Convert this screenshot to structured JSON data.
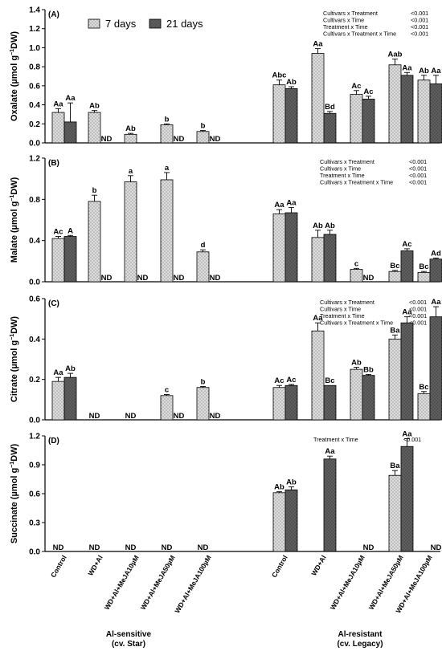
{
  "categories": [
    "Control",
    "WD+Al",
    "WD+Al+MeJA10µM",
    "WD+Al+MeJA50µM",
    "WD+Al+MeJA100µM"
  ],
  "legend": {
    "series_a": "7 days",
    "series_b": "21 days"
  },
  "groups": [
    {
      "line1": "Al-sensitive",
      "line2": "(cv. Star)"
    },
    {
      "line1": "Al-resistant",
      "line2": "(cv. Legacy)"
    }
  ],
  "colors": {
    "light_bar": "#d9d9d9",
    "dark_bar": "#606060"
  },
  "chart_data": [
    {
      "type": "bar",
      "panel": "(A)",
      "ylabel_main": "Oxalate (µmol g",
      "ylabel_sup": "−1",
      "ylabel_end": "DW)",
      "ylim": [
        0,
        1.4
      ],
      "ticks": [
        "0.0",
        "0.2",
        "0.4",
        "0.6",
        "0.8",
        "1.0",
        "1.2",
        "1.4"
      ],
      "stats": [
        {
          "label": "Cultivars x Treatment",
          "value": "<0.001"
        },
        {
          "label": "Cultivars x Time",
          "value": "<0.001"
        },
        {
          "label": "Treatment x Time",
          "value": "<0.001"
        },
        {
          "label": "Cultivars x Treatment x Time",
          "value": "<0.001"
        }
      ],
      "series": [
        {
          "name": "7 days",
          "sensitive": [
            0.32,
            0.32,
            0.09,
            0.19,
            0.12
          ],
          "sensitive_err": [
            0.04,
            0.02,
            0.01,
            0.01,
            0.01
          ],
          "sensitive_labels": [
            "Aa",
            "Ab",
            "Ab",
            "b",
            "b"
          ],
          "resistant": [
            0.61,
            0.94,
            0.51,
            0.82,
            0.66
          ],
          "resistant_err": [
            0.05,
            0.05,
            0.04,
            0.06,
            0.05
          ],
          "resistant_labels": [
            "Abc",
            "Aa",
            "Ac",
            "Aab",
            "Ab"
          ]
        },
        {
          "name": "21 days",
          "sensitive": [
            0.22,
            null,
            null,
            null,
            null
          ],
          "sensitive_err": [
            0.2,
            null,
            null,
            null,
            null
          ],
          "sensitive_labels": [
            "Aa",
            "ND",
            "",
            "ND",
            "ND"
          ],
          "resistant": [
            0.57,
            0.31,
            0.46,
            0.71,
            0.62
          ],
          "resistant_err": [
            0.02,
            0.02,
            0.03,
            0.03,
            0.09
          ],
          "resistant_labels": [
            "Ab",
            "Bd",
            "Ac",
            "Aa",
            "Aa"
          ]
        }
      ]
    },
    {
      "type": "bar",
      "panel": "(B)",
      "ylabel_main": "Malate (µmol g",
      "ylabel_sup": "−1",
      "ylabel_end": "DW)",
      "ylim": [
        0,
        1.2
      ],
      "ticks": [
        "0.0",
        "0.4",
        "0.8",
        "1.2"
      ],
      "stats": [
        {
          "label": "Cultivars x Treatment",
          "value": "<0.001"
        },
        {
          "label": "Cultivars x Time",
          "value": "<0.001"
        },
        {
          "label": "Treatment x Time",
          "value": "<0.001"
        },
        {
          "label": "Cultivars x Treatment x Time",
          "value": "<0.001"
        }
      ],
      "series": [
        {
          "name": "7 days",
          "sensitive": [
            0.42,
            0.78,
            0.97,
            0.99,
            0.29
          ],
          "sensitive_err": [
            0.02,
            0.06,
            0.06,
            0.07,
            0.02
          ],
          "sensitive_labels": [
            "Ac",
            "b",
            "a",
            "a",
            "d"
          ],
          "resistant": [
            0.66,
            0.43,
            0.12,
            0.1,
            0.09
          ],
          "resistant_err": [
            0.04,
            0.07,
            0.01,
            0.01,
            0.01
          ],
          "resistant_labels": [
            "Aa",
            "Ab",
            "c",
            "Bc",
            "Bc"
          ]
        },
        {
          "name": "21 days",
          "sensitive": [
            0.44,
            null,
            null,
            null,
            null
          ],
          "sensitive_err": [
            0.01,
            null,
            null,
            null,
            null
          ],
          "sensitive_labels": [
            "A",
            "ND",
            "ND",
            "ND",
            "ND"
          ],
          "resistant": [
            0.67,
            0.46,
            null,
            0.3,
            0.22
          ],
          "resistant_err": [
            0.05,
            0.04,
            null,
            0.02,
            0.01
          ],
          "resistant_labels": [
            "Aa",
            "Ab",
            "ND",
            "Ac",
            "Ad"
          ]
        }
      ]
    },
    {
      "type": "bar",
      "panel": "(C)",
      "ylabel_main": "Citrate (µmol g",
      "ylabel_sup": "−1",
      "ylabel_end": "DW)",
      "ylim": [
        0,
        0.6
      ],
      "ticks": [
        "0.0",
        "0.2",
        "0.4",
        "0.6"
      ],
      "stats": [
        {
          "label": "Cultivars x Treatment",
          "value": "<0.001"
        },
        {
          "label": "Cultivars x Time",
          "value": "<0.001"
        },
        {
          "label": "Treatment x Time",
          "value": "<0.001"
        },
        {
          "label": "Cultivars x Treatment x Time",
          "value": "<0.001"
        }
      ],
      "series": [
        {
          "name": "7 days",
          "sensitive": [
            0.19,
            null,
            null,
            0.12,
            0.16
          ],
          "sensitive_err": [
            0.02,
            null,
            null,
            0.005,
            0.005
          ],
          "sensitive_labels": [
            "Aa",
            "ND",
            "ND",
            "c",
            "b"
          ],
          "resistant": [
            0.16,
            0.44,
            0.25,
            0.4,
            0.13
          ],
          "resistant_err": [
            0.01,
            0.04,
            0.01,
            0.02,
            0.01
          ],
          "resistant_labels": [
            "Ac",
            "Aa",
            "Ab",
            "Ba",
            "Bc"
          ]
        },
        {
          "name": "21 days",
          "sensitive": [
            0.21,
            null,
            null,
            null,
            null
          ],
          "sensitive_err": [
            0.02,
            null,
            null,
            null,
            null
          ],
          "sensitive_labels": [
            "Ab",
            "",
            "",
            "ND",
            "ND"
          ],
          "resistant": [
            0.17,
            0.17,
            0.22,
            0.48,
            0.51
          ],
          "resistant_err": [
            0.005,
            0.0,
            0.005,
            0.03,
            0.05
          ],
          "resistant_labels": [
            "Ac",
            "Bc",
            "Bb",
            "Aa",
            "Aa"
          ]
        }
      ]
    },
    {
      "type": "bar",
      "panel": "(D)",
      "ylabel_main": "Succinate (µmol g",
      "ylabel_sup": "−1",
      "ylabel_end": "DW)",
      "ylim": [
        0,
        1.2
      ],
      "ticks": [
        "0.0",
        "0.3",
        "0.6",
        "0.9",
        "1.2"
      ],
      "stats": [
        {
          "label": "Treatment x Time",
          "value": "<0.001"
        }
      ],
      "series": [
        {
          "name": "7 days",
          "sensitive": [
            null,
            null,
            null,
            null,
            null
          ],
          "sensitive_err": [
            null,
            null,
            null,
            null,
            null
          ],
          "sensitive_labels": [
            "ND",
            "ND",
            "ND",
            "ND",
            "ND"
          ],
          "resistant": [
            0.61,
            null,
            null,
            0.79,
            null
          ],
          "resistant_err": [
            0.01,
            null,
            null,
            0.05,
            null
          ],
          "resistant_labels": [
            "Ab",
            "",
            "",
            "Ba",
            ""
          ]
        },
        {
          "name": "21 days",
          "sensitive": [
            null,
            null,
            null,
            null,
            null
          ],
          "sensitive_err": [
            null,
            null,
            null,
            null,
            null
          ],
          "sensitive_labels": [
            "",
            "",
            "",
            "",
            ""
          ],
          "resistant": [
            0.64,
            0.96,
            null,
            1.09,
            null
          ],
          "resistant_err": [
            0.03,
            0.03,
            null,
            0.08,
            null
          ],
          "resistant_labels": [
            "Ab",
            "Aa",
            "ND",
            "Aa",
            "ND"
          ]
        }
      ]
    }
  ]
}
